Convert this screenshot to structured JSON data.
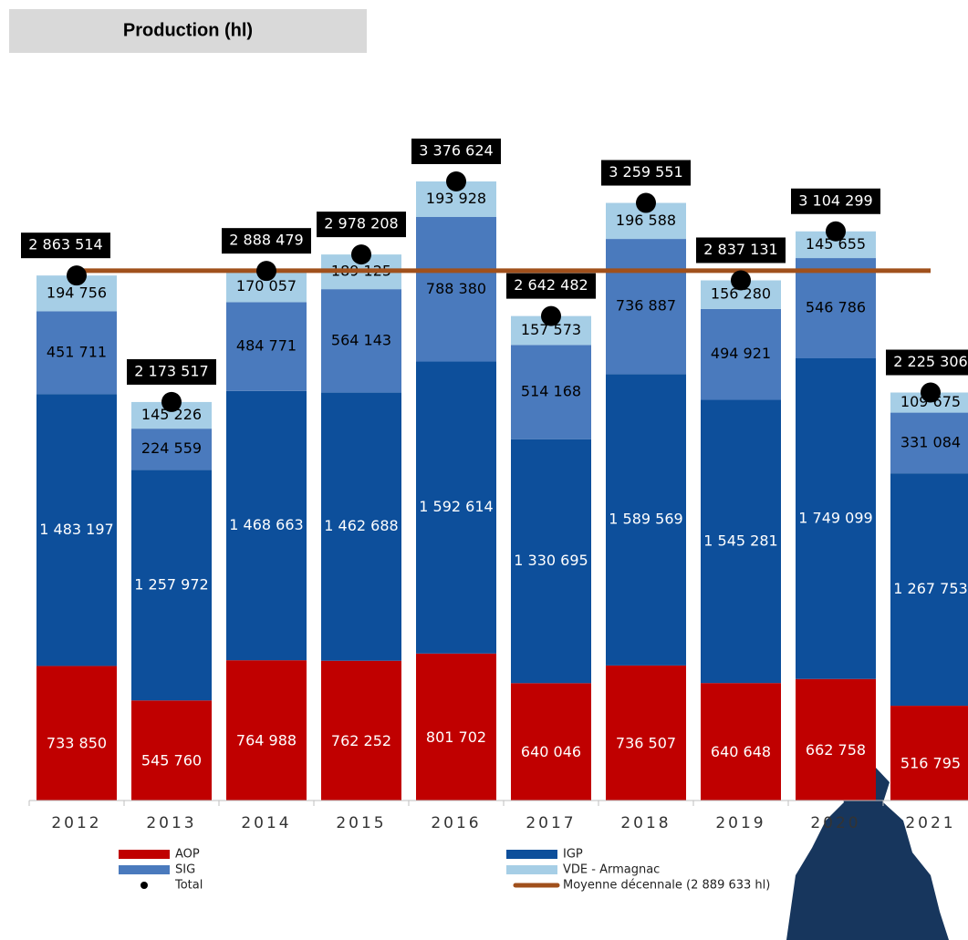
{
  "chart_data": {
    "type": "bar",
    "stacked": true,
    "title": "Production (hl)",
    "categories": [
      "2012",
      "2013",
      "2014",
      "2015",
      "2016",
      "2017",
      "2018",
      "2019",
      "2020",
      "2021"
    ],
    "series": [
      {
        "name": "AOP",
        "color": "#c00000",
        "label_color": "#ffffff",
        "values": [
          733850,
          545760,
          764988,
          762252,
          801702,
          640046,
          736507,
          640648,
          662758,
          516795
        ],
        "value_labels": [
          "733 850",
          "545 760",
          "764 988",
          "762 252",
          "801 702",
          "640 046",
          "736 507",
          "640 648",
          "662 758",
          "516 795"
        ]
      },
      {
        "name": "IGP",
        "color": "#0d4f9b",
        "label_color": "#ffffff",
        "values": [
          1483197,
          1257972,
          1468663,
          1462688,
          1592614,
          1330695,
          1589569,
          1545281,
          1749099,
          1267753
        ],
        "value_labels": [
          "1 483 197",
          "1 257 972",
          "1 468 663",
          "1 462 688",
          "1 592 614",
          "1 330 695",
          "1 589 569",
          "1 545 281",
          "1 749 099",
          "1 267 753"
        ]
      },
      {
        "name": "SIG",
        "color": "#4a7abd",
        "label_color": "#000000",
        "values": [
          451711,
          224559,
          484771,
          564143,
          788380,
          514168,
          736887,
          494921,
          546786,
          331084
        ],
        "value_labels": [
          "451 711",
          "224 559",
          "484 771",
          "564 143",
          "788 380",
          "514 168",
          "736 887",
          "494 921",
          "546 786",
          "331 084"
        ]
      },
      {
        "name": "VDE - Armagnac",
        "color": "#a6cee6",
        "label_color": "#000000",
        "values": [
          194756,
          145226,
          170057,
          189125,
          193928,
          157573,
          196588,
          156280,
          145655,
          109675
        ],
        "value_labels": [
          "194 756",
          "145 226",
          "170 057",
          "189 125",
          "193 928",
          "157 573",
          "196 588",
          "156 280",
          "145 655",
          "109 675"
        ]
      }
    ],
    "totals": {
      "name": "Total",
      "color": "#000000",
      "values": [
        2863514,
        2173517,
        2888479,
        2978208,
        3376624,
        2642482,
        3259551,
        2837131,
        3104299,
        2225306
      ],
      "value_labels": [
        "2 863 514",
        "2 173 517",
        "2 888 479",
        "2 978 208",
        "3 376 624",
        "2 642 482",
        "3 259 551",
        "2 837 131",
        "3 104 299",
        "2 225 306"
      ]
    },
    "average": {
      "name": "Moyenne décennale (2 889 633 hl)",
      "value": 2889633,
      "color": "#a0501c"
    }
  }
}
